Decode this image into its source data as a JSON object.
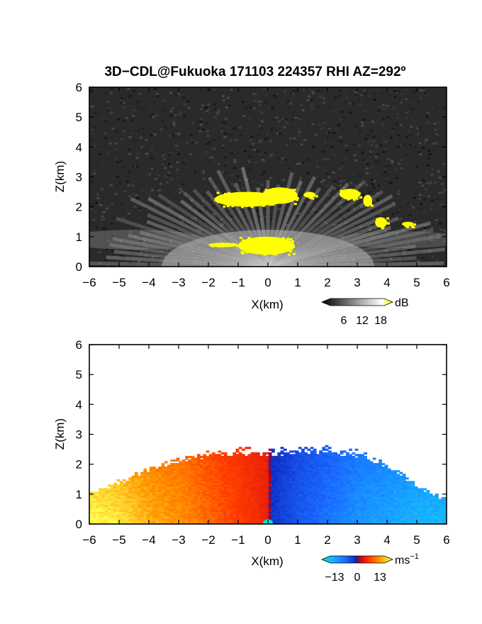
{
  "title": "3D−CDL@Fukuoka 171103 224357 RHI AZ=292º",
  "chart_data": [
    {
      "type": "heatmap",
      "panel": "reflectivity",
      "xlabel": "X(km)",
      "ylabel": "Z(km)",
      "xlim": [
        -6,
        6
      ],
      "ylim": [
        0,
        6
      ],
      "xticks": [
        "−6",
        "−5",
        "−4",
        "−3",
        "−2",
        "−1",
        "0",
        "1",
        "2",
        "3",
        "4",
        "5",
        "6"
      ],
      "yticks": [
        "0",
        "1",
        "2",
        "3",
        "4",
        "5",
        "6"
      ],
      "colorbar": {
        "unit": "dB",
        "ticks": [
          "6",
          "12",
          "18"
        ],
        "range": [
          0,
          20
        ],
        "colormap": [
          "#000000",
          "#ffffff",
          "#ffff00"
        ]
      },
      "background_color": "#2a2a2a",
      "highlight_color": "#ffff00",
      "regions_above_18dB": [
        {
          "x": [
            -1.8,
            0.4
          ],
          "z": [
            2.0,
            2.5
          ]
        },
        {
          "x": [
            -0.2,
            1.0
          ],
          "z": [
            2.1,
            2.65
          ]
        },
        {
          "x": [
            1.2,
            1.6
          ],
          "z": [
            2.3,
            2.5
          ]
        },
        {
          "x": [
            2.4,
            3.1
          ],
          "z": [
            2.25,
            2.6
          ]
        },
        {
          "x": [
            3.2,
            3.5
          ],
          "z": [
            2.0,
            2.4
          ]
        },
        {
          "x": [
            3.6,
            4.0
          ],
          "z": [
            1.3,
            1.65
          ]
        },
        {
          "x": [
            4.5,
            4.9
          ],
          "z": [
            1.35,
            1.5
          ]
        },
        {
          "x": [
            -2.0,
            -1.0
          ],
          "z": [
            0.65,
            0.8
          ]
        },
        {
          "x": [
            -1.0,
            0.9
          ],
          "z": [
            0.4,
            1.0
          ]
        }
      ]
    },
    {
      "type": "heatmap",
      "panel": "doppler-velocity",
      "xlabel": "X(km)",
      "ylabel": "Z(km)",
      "xlim": [
        -6,
        6
      ],
      "ylim": [
        0,
        6
      ],
      "xticks": [
        "−6",
        "−5",
        "−4",
        "−3",
        "−2",
        "−1",
        "0",
        "1",
        "2",
        "3",
        "4",
        "5",
        "6"
      ],
      "yticks": [
        "0",
        "1",
        "2",
        "3",
        "4",
        "5",
        "6"
      ],
      "colorbar": {
        "unit": "ms",
        "unit_exponent": "−1",
        "ticks": [
          "−13",
          "0",
          "13"
        ],
        "range": [
          -13,
          13
        ]
      },
      "velocity_profile": [
        {
          "x": -6.0,
          "top": 1.1,
          "v": 13
        },
        {
          "x": -5.0,
          "top": 1.5,
          "v": 12
        },
        {
          "x": -4.0,
          "top": 2.0,
          "v": 10
        },
        {
          "x": -3.0,
          "top": 2.3,
          "v": 9
        },
        {
          "x": -2.0,
          "top": 2.5,
          "v": 7
        },
        {
          "x": -1.0,
          "top": 2.6,
          "v": 5
        },
        {
          "x": -0.1,
          "top": 2.55,
          "v": 2
        },
        {
          "x": 0.1,
          "top": 2.55,
          "v": -2
        },
        {
          "x": 1.0,
          "top": 2.65,
          "v": -5
        },
        {
          "x": 2.0,
          "top": 2.6,
          "v": -7
        },
        {
          "x": 3.0,
          "top": 2.5,
          "v": -9
        },
        {
          "x": 4.0,
          "top": 2.1,
          "v": -10
        },
        {
          "x": 5.0,
          "top": 1.3,
          "v": -11
        },
        {
          "x": 5.8,
          "top": 0.9,
          "v": -11
        }
      ]
    }
  ]
}
